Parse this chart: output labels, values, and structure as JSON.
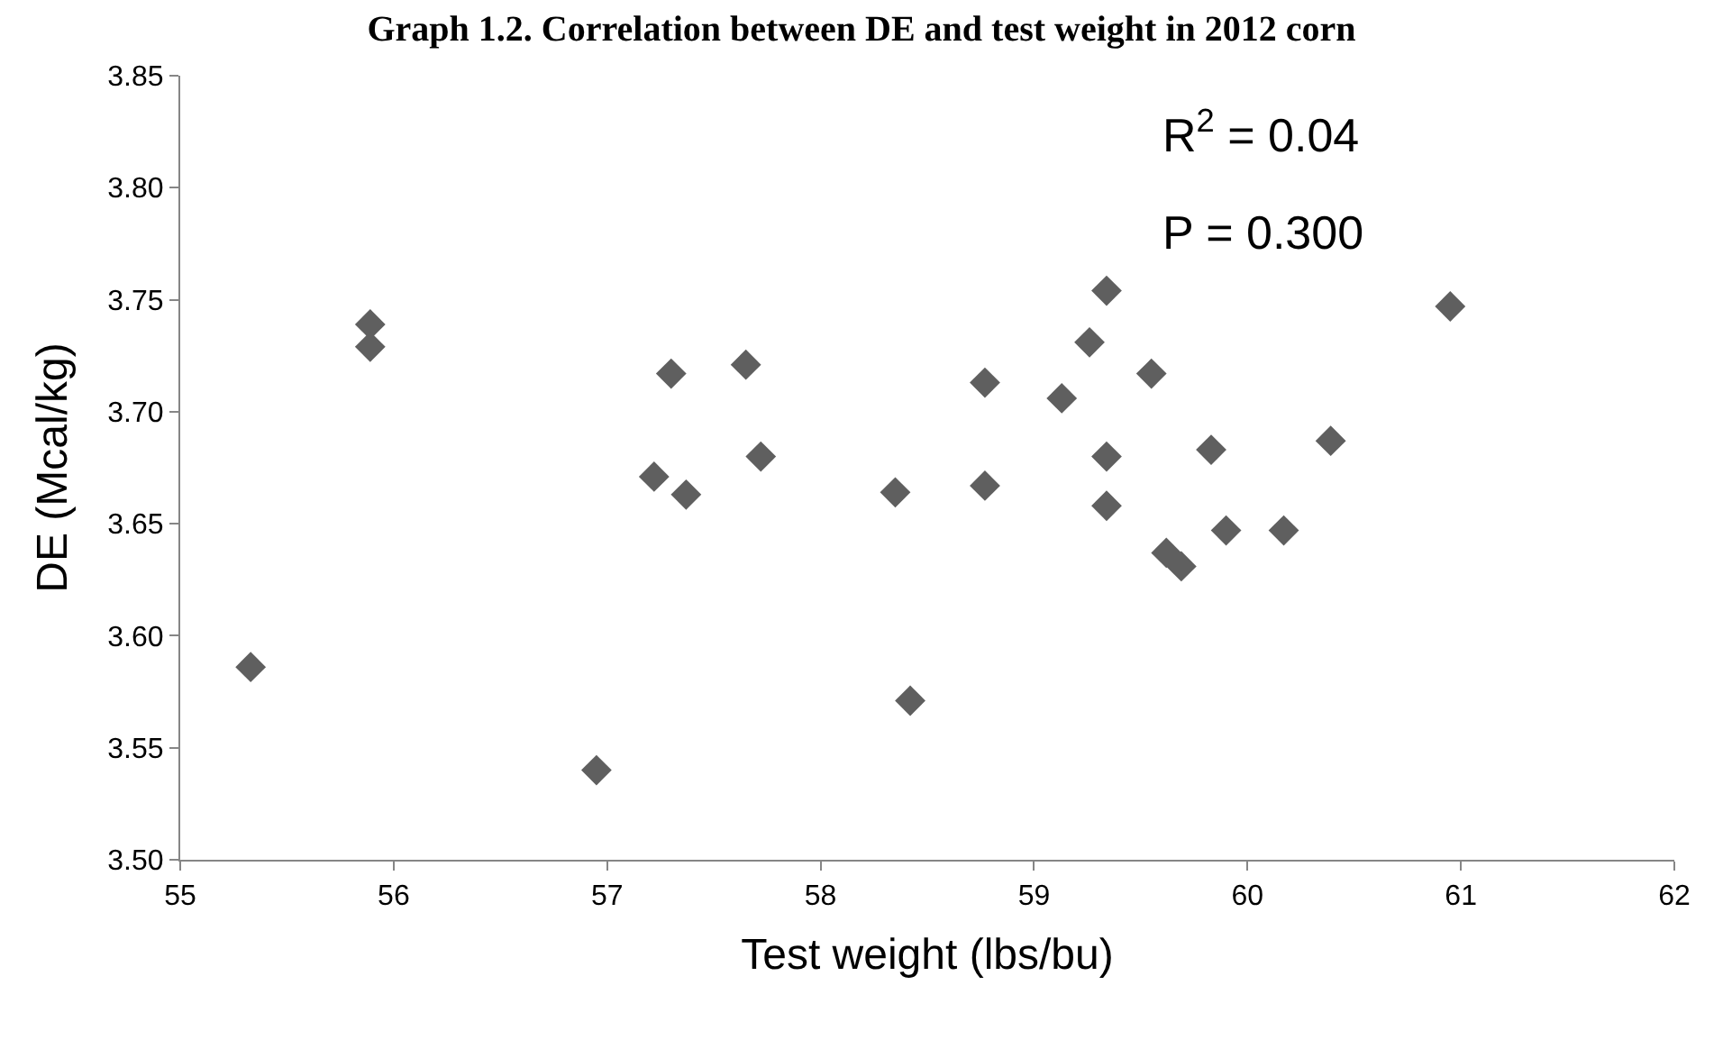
{
  "chart_data": {
    "type": "scatter",
    "title": "Graph 1.2. Correlation between DE and test weight in 2012 corn",
    "xlabel": "Test weight (lbs/bu)",
    "ylabel": "DE (Mcal/kg)",
    "annotations": [
      "R$^{2}$ = 0.04",
      "P = 0.300"
    ],
    "x": [
      55.89,
      55.89,
      57.3,
      57.65,
      57.22,
      57.37,
      57.72,
      58.35,
      55.33,
      58.42,
      56.95,
      59.34,
      59.26,
      58.77,
      59.13,
      59.55,
      59.34,
      59.83,
      60.39,
      60.95,
      58.77,
      59.34,
      59.62,
      59.69,
      59.9,
      60.17
    ],
    "series": [
      {
        "color": "#5f5f5f",
        "values": [
          3.739,
          3.729,
          3.717,
          3.721,
          3.671,
          3.663,
          3.68,
          3.664,
          3.586,
          3.571,
          3.54,
          3.754,
          3.731,
          3.713,
          3.706,
          3.717,
          3.68,
          3.683,
          3.687,
          3.747,
          3.667,
          3.658,
          3.637,
          3.631,
          3.647,
          3.647
        ]
      }
    ],
    "xlim": [
      55,
      62
    ],
    "xticks": [
      55,
      56,
      57,
      58,
      59,
      60,
      61,
      62
    ],
    "ylim": [
      3.5,
      3.85
    ],
    "yticks": [
      {
        "value": 3.5,
        "label": "3.50"
      },
      {
        "value": 3.55,
        "label": "3.55"
      },
      {
        "value": 3.6,
        "label": "3.60"
      },
      {
        "value": 3.65,
        "label": "3.65"
      },
      {
        "value": 3.7,
        "label": "3.70"
      },
      {
        "value": 3.75,
        "label": "3.75"
      },
      {
        "value": 3.8,
        "label": "3.80"
      },
      {
        "value": 3.85,
        "label": "3.85"
      }
    ],
    "marker": "diamond"
  }
}
